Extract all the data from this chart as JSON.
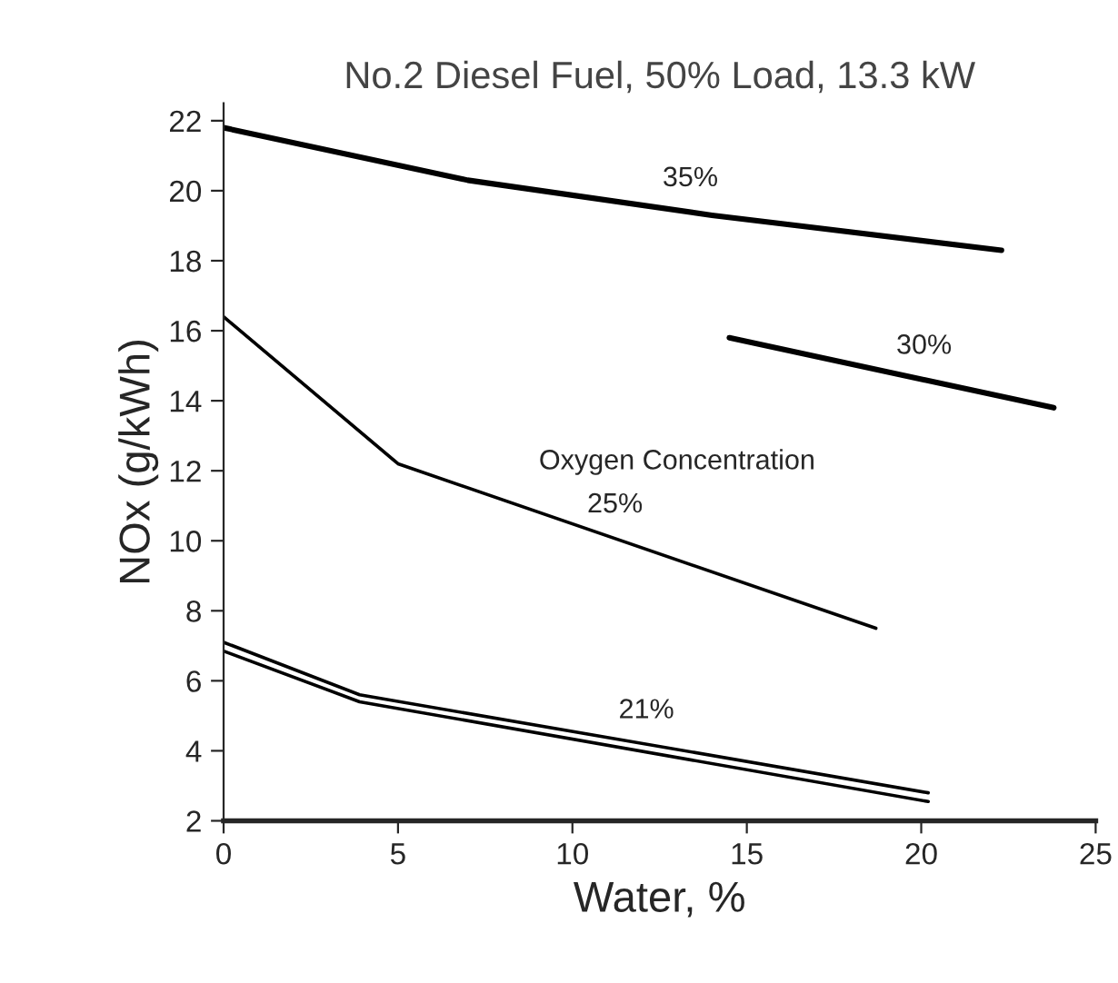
{
  "chart_data": {
    "type": "line",
    "title": "No.2 Diesel Fuel, 50% Load, 13.3 kW",
    "xlabel": "Water, %",
    "ylabel": "NOx (g/kWh)",
    "series": [
      {
        "name": "35%",
        "color": "#000000",
        "x": [
          0,
          7,
          14,
          22.3
        ],
        "values": [
          21.8,
          20.3,
          19.3,
          18.3
        ]
      },
      {
        "name": "30%",
        "color": "#000000",
        "x": [
          14.5,
          23.8
        ],
        "values": [
          15.8,
          13.8
        ]
      },
      {
        "name": "25%",
        "color": "#000000",
        "x": [
          0,
          5,
          18.7
        ],
        "values": [
          16.4,
          12.2,
          7.5
        ]
      },
      {
        "name": "21%",
        "color": "#000000",
        "x": [
          0,
          3.9,
          20.2
        ],
        "values": [
          7.1,
          5.6,
          2.8
        ]
      },
      {
        "color": "#000000",
        "x": [
          0,
          3.9,
          20.2
        ],
        "values": [
          6.85,
          5.4,
          2.55
        ]
      }
    ],
    "annotations": [
      "Oxygen Concentration"
    ],
    "xlim": [
      0,
      25
    ],
    "xticks": [
      0,
      5,
      10,
      15,
      20,
      25
    ],
    "ylim": [
      2,
      22.5
    ],
    "yticks": [
      2,
      4,
      6,
      8,
      10,
      12,
      14,
      16,
      18,
      20,
      22
    ],
    "grid": false,
    "legend": false,
    "marker": "none",
    "line_style": "solid"
  }
}
